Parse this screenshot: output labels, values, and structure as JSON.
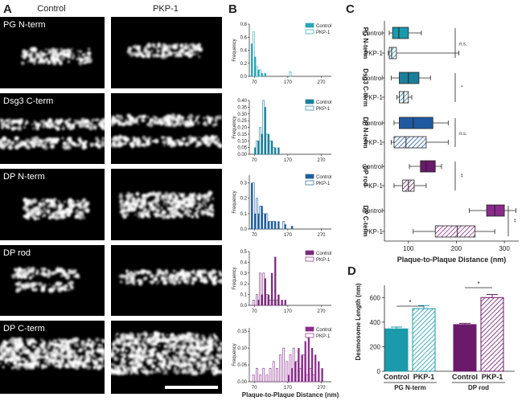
{
  "panel_a": {
    "label": "A",
    "columns": [
      "Control",
      "PKP-1"
    ],
    "rows": [
      "PG N-term",
      "Dsg3 C-term",
      "DP N-term",
      "DP rod",
      "DP C-term"
    ]
  },
  "chart_data": [
    {
      "type": "histogram",
      "panel_label": "B",
      "ylabel": "Frequency",
      "bins": [
        60,
        70,
        80,
        90,
        100,
        110,
        120,
        130,
        140,
        150,
        160,
        170,
        180,
        190,
        200,
        210,
        220,
        230,
        240,
        250,
        260,
        270,
        280
      ],
      "series": [
        {
          "name": "Control",
          "color": "#2aa7b8",
          "style": "filled",
          "values": [
            0.5,
            0.3,
            0.1,
            0.05,
            0.05,
            0,
            0,
            0,
            0,
            0,
            0,
            0,
            0,
            0,
            0,
            0,
            0,
            0,
            0,
            0,
            0,
            0
          ]
        },
        {
          "name": "PKP-1",
          "color": "#2aa7b8",
          "style": "open",
          "values": [
            0.68,
            0.15,
            0.1,
            0,
            0,
            0,
            0,
            0,
            0,
            0,
            0,
            0.07,
            0,
            0,
            0,
            0,
            0,
            0,
            0,
            0,
            0,
            0
          ]
        }
      ],
      "xlim": [
        55,
        300
      ],
      "xticks": [
        70,
        170,
        270
      ],
      "ylim": [
        0,
        0.8
      ],
      "yticks": [
        {
          "value": 0,
          "label": "0.0"
        },
        0.2,
        0.4,
        0.6,
        0.8
      ]
    },
    {
      "type": "histogram",
      "ylabel": "Frequency",
      "bins": [
        60,
        70,
        80,
        90,
        100,
        110,
        120,
        130,
        140,
        150,
        160,
        170,
        180,
        190,
        200,
        210,
        220,
        230,
        240,
        250,
        260,
        270,
        280
      ],
      "series": [
        {
          "name": "Control",
          "color": "#1a7f9a",
          "style": "filled",
          "values": [
            0,
            0.05,
            0.1,
            0.15,
            0.35,
            0.15,
            0.1,
            0.05,
            0.05,
            0,
            0,
            0,
            0,
            0,
            0,
            0,
            0,
            0,
            0,
            0,
            0,
            0
          ]
        },
        {
          "name": "PKP-1",
          "color": "#1a7f9a",
          "style": "open",
          "values": [
            0,
            0.1,
            0.2,
            0.4,
            0.15,
            0.1,
            0.05,
            0,
            0,
            0,
            0,
            0,
            0,
            0,
            0,
            0,
            0,
            0,
            0,
            0,
            0,
            0
          ]
        }
      ],
      "xlim": [
        55,
        300
      ],
      "xticks": [
        70,
        170,
        270
      ],
      "ylim": [
        0,
        0.4
      ],
      "yticks": [
        {
          "value": 0,
          "label": "0.00"
        },
        0.05,
        {
          "value": 0.1,
          "label": "0.10"
        },
        0.15,
        {
          "value": 0.2,
          "label": "0.20"
        },
        0.25,
        {
          "value": 0.3,
          "label": "0.30"
        },
        0.35,
        {
          "value": 0.4,
          "label": "0.40"
        }
      ]
    },
    {
      "type": "histogram",
      "ylabel": "Frequency",
      "bins": [
        60,
        70,
        80,
        90,
        100,
        110,
        120,
        130,
        140,
        150,
        160,
        170,
        180,
        190,
        200,
        210,
        220,
        230,
        240,
        250,
        260,
        270,
        280
      ],
      "series": [
        {
          "name": "Control",
          "color": "#1f5d99",
          "style": "filled",
          "values": [
            0.3,
            0.1,
            0.1,
            0.15,
            0.1,
            0.05,
            0.05,
            0.05,
            0.05,
            0,
            0.03,
            0,
            0.02,
            0,
            0,
            0,
            0,
            0,
            0,
            0,
            0,
            0
          ]
        },
        {
          "name": "PKP-1",
          "color": "#1f5d99",
          "style": "open",
          "values": [
            0.3,
            0.2,
            0.15,
            0.1,
            0.1,
            0.05,
            0.05,
            0,
            0,
            0.05,
            0,
            0,
            0,
            0,
            0,
            0,
            0,
            0,
            0,
            0,
            0,
            0
          ]
        }
      ],
      "xlim": [
        55,
        300
      ],
      "xticks": [
        70,
        170,
        270
      ],
      "ylim": [
        0,
        0.35
      ],
      "yticks": [
        {
          "value": 0,
          "label": "0.0"
        },
        0.1,
        0.2,
        0.3
      ]
    },
    {
      "type": "histogram",
      "ylabel": "Frequency",
      "bins": [
        60,
        70,
        80,
        90,
        100,
        110,
        120,
        130,
        140,
        150,
        160,
        170,
        180,
        190,
        200,
        210,
        220,
        230,
        240,
        250,
        260,
        270,
        280
      ],
      "series": [
        {
          "name": "Control",
          "color": "#7a2a7a",
          "style": "filled",
          "values": [
            0,
            0,
            0.05,
            0.1,
            0.25,
            0.1,
            0.3,
            0.45,
            0.1,
            0.05,
            0.05,
            0,
            0,
            0,
            0,
            0,
            0,
            0,
            0,
            0,
            0,
            0
          ]
        },
        {
          "name": "PKP-1",
          "color": "#7a2a7a",
          "style": "open",
          "values": [
            0.05,
            0.1,
            0.3,
            0.3,
            0.1,
            0.05,
            0.05,
            0.05,
            0,
            0,
            0,
            0,
            0,
            0,
            0,
            0,
            0,
            0,
            0,
            0,
            0,
            0
          ]
        }
      ],
      "xlim": [
        55,
        300
      ],
      "xticks": [
        70,
        170,
        270
      ],
      "ylim": [
        0,
        0.5
      ],
      "yticks": [
        {
          "value": 0,
          "label": "0.0"
        },
        0.1,
        0.2,
        0.3,
        0.4,
        0.5
      ]
    },
    {
      "type": "histogram",
      "ylabel": "Frequency",
      "xlabel": "Plaque-to-Plaque Distance (nm)",
      "bins": [
        60,
        70,
        80,
        90,
        100,
        110,
        120,
        130,
        140,
        150,
        160,
        170,
        180,
        190,
        200,
        210,
        220,
        230,
        240,
        250,
        260,
        270,
        280
      ],
      "series": [
        {
          "name": "Control",
          "color": "#8b2d8b",
          "style": "filled",
          "values": [
            0,
            0,
            0,
            0,
            0,
            0,
            0,
            0,
            0,
            0,
            0,
            0.02,
            0.04,
            0.06,
            0.1,
            0.08,
            0.12,
            0.14,
            0.1,
            0.08,
            0.06,
            0.04
          ]
        },
        {
          "name": "PKP-1",
          "color": "#8b2d8b",
          "style": "open",
          "values": [
            0.02,
            0.04,
            0.02,
            0.04,
            0.02,
            0.04,
            0.06,
            0.04,
            0.08,
            0.1,
            0.06,
            0.08,
            0.1,
            0.06,
            0.04,
            0.08,
            0.02,
            0.04,
            0.02,
            0,
            0,
            0
          ]
        }
      ],
      "xlim": [
        55,
        300
      ],
      "xticks": [
        70,
        170,
        270
      ],
      "ylim": [
        0,
        0.16
      ],
      "yticks": [
        {
          "value": 0,
          "label": "0.00"
        },
        0.05,
        {
          "value": 0.1,
          "label": "0.10"
        },
        0.15
      ]
    },
    {
      "type": "box",
      "panel_label": "C",
      "xlabel": "Plaque-to-Plaque Distance (nm)",
      "xlim": [
        50,
        330
      ],
      "xticks": [
        100,
        200,
        300
      ],
      "categories": [
        "Control",
        "PKP-1",
        "Control",
        "PKP-1",
        "Control",
        "PKP-1",
        "Control",
        "PKP-1",
        "Control",
        "PKP-1"
      ],
      "groups": [
        "PG N-term",
        "Dsg3 C-term",
        "DP N-term",
        "DP rod",
        "DP C-term"
      ],
      "colors": [
        "#1a9aaa",
        "#1a7f9a",
        "#1f5aa0",
        "#6b1a6b",
        "#8a2a8a"
      ],
      "significance": [
        "n.s.",
        "*",
        "n.s.",
        "**",
        "**"
      ],
      "boxes": [
        {
          "min": 60,
          "q1": 67,
          "median": 80,
          "q3": 100,
          "max": 127
        },
        {
          "min": 58,
          "q1": 60,
          "median": 65,
          "q3": 75,
          "max": 205
        },
        {
          "min": 64,
          "q1": 81,
          "median": 100,
          "q3": 122,
          "max": 146
        },
        {
          "min": 76,
          "q1": 81,
          "median": 90,
          "q3": 100,
          "max": 107
        },
        {
          "min": 70,
          "q1": 81,
          "median": 110,
          "q3": 151,
          "max": 183
        },
        {
          "min": 64,
          "q1": 70,
          "median": 95,
          "q3": 137,
          "max": 183
        },
        {
          "min": 102,
          "q1": 125,
          "median": 137,
          "q3": 156,
          "max": 169
        },
        {
          "min": 70,
          "q1": 88,
          "median": 100,
          "q3": 112,
          "max": 137
        },
        {
          "min": 227,
          "q1": 263,
          "median": 280,
          "q3": 300,
          "max": 324
        },
        {
          "min": 110,
          "q1": 156,
          "median": 202,
          "q3": 239,
          "max": 280
        }
      ]
    },
    {
      "type": "bar",
      "panel_label": "D",
      "ylabel": "Desmosome Length (nm)",
      "ylim": [
        0,
        700
      ],
      "yticks": [
        0,
        200,
        400,
        600
      ],
      "categories": [
        "Control",
        "PKP-1",
        "Control",
        "PKP-1"
      ],
      "groups": [
        "PG N-term",
        "DP rod"
      ],
      "colors": [
        "#1a9aaa",
        "#6b1a6b"
      ],
      "values": [
        345,
        510,
        380,
        600
      ],
      "errors": [
        15,
        25,
        10,
        25
      ],
      "significance": [
        "*",
        "*"
      ]
    }
  ]
}
